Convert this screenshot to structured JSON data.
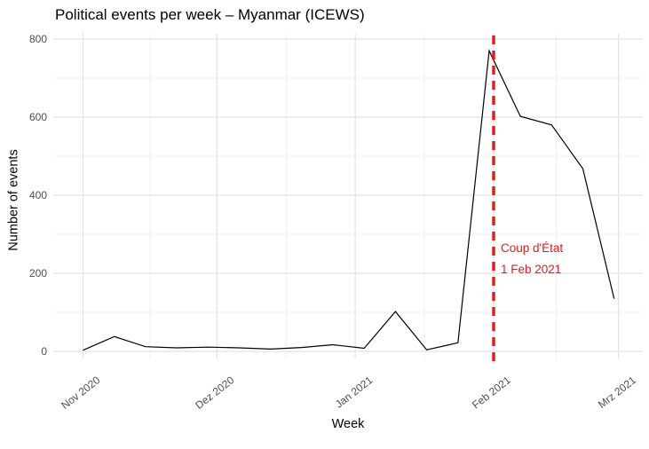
{
  "title": "Political events per week – Myanmar (ICEWS)",
  "x_axis": {
    "label": "Week",
    "tick_labels": [
      "Nov 2020",
      "Dez 2020",
      "Jan 2021",
      "Feb 2021",
      "Mrz 2021"
    ],
    "tick_dates": [
      "2020-11-01",
      "2020-12-01",
      "2021-01-01",
      "2021-02-01",
      "2021-03-01"
    ]
  },
  "y_axis": {
    "label": "Number of events",
    "tick_values": [
      0,
      200,
      400,
      600,
      800
    ],
    "minor_tick_values": [
      100,
      300,
      500,
      700
    ]
  },
  "annotation": {
    "line1": "Coup d'État",
    "line2": "1 Feb 2021"
  },
  "colors": {
    "accent_red": "#E31A1C",
    "series_line": "#000000",
    "grid_major": "#E2E2E2",
    "grid_minor": "#EFEFEF",
    "tick_label": "#4D4D4D",
    "title_text": "#000000"
  },
  "chart_data": {
    "type": "line",
    "title": "Political events per week – Myanmar (ICEWS)",
    "xlabel": "Week",
    "ylabel": "Number of events",
    "x": [
      "2020-11-01",
      "2020-11-08",
      "2020-11-15",
      "2020-11-22",
      "2020-11-29",
      "2020-12-06",
      "2020-12-13",
      "2020-12-20",
      "2020-12-27",
      "2021-01-03",
      "2021-01-10",
      "2021-01-17",
      "2021-01-24",
      "2021-01-31",
      "2021-02-07",
      "2021-02-14",
      "2021-02-21",
      "2021-02-28"
    ],
    "values": [
      3,
      38,
      12,
      9,
      11,
      9,
      6,
      10,
      17,
      8,
      102,
      4,
      22,
      770,
      602,
      580,
      468,
      135
    ],
    "ylim": [
      0,
      800
    ],
    "grid": true,
    "legend": "none",
    "x_tick_labels": [
      "Nov 2020",
      "Dez 2020",
      "Jan 2021",
      "Feb 2021",
      "Mrz 2021"
    ],
    "x_tick_dates": [
      "2020-11-01",
      "2020-12-01",
      "2021-01-01",
      "2021-02-01",
      "2021-03-01"
    ],
    "vline": {
      "x": "2021-02-01",
      "style": "dashed",
      "color": "#E31A1C",
      "label_lines": [
        "Coup d'État",
        "1 Feb 2021"
      ]
    }
  }
}
